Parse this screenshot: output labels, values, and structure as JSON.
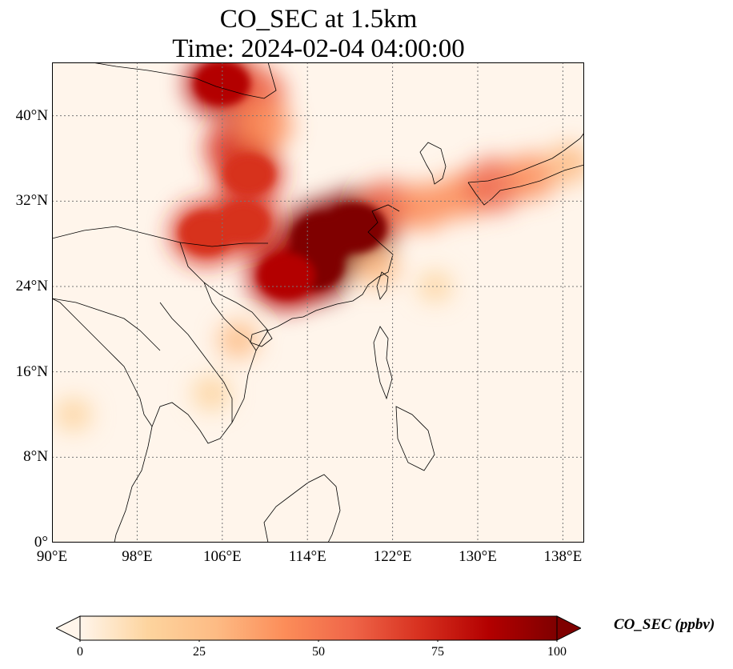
{
  "title": {
    "line1": "CO_SEC at 1.5km",
    "line2": "Time: 2024-02-04 04:00:00"
  },
  "map": {
    "lon_range": [
      90,
      140
    ],
    "lat_range": [
      0,
      45
    ],
    "lat_ticks": [
      {
        "value": 0,
        "label": "0°"
      },
      {
        "value": 8,
        "label": "8°N"
      },
      {
        "value": 16,
        "label": "16°N"
      },
      {
        "value": 24,
        "label": "24°N"
      },
      {
        "value": 32,
        "label": "32°N"
      },
      {
        "value": 40,
        "label": "40°N"
      }
    ],
    "lon_ticks": [
      {
        "value": 90,
        "label": "90°E"
      },
      {
        "value": 98,
        "label": "98°E"
      },
      {
        "value": 106,
        "label": "106°E"
      },
      {
        "value": 114,
        "label": "114°E"
      },
      {
        "value": 122,
        "label": "122°E"
      },
      {
        "value": 130,
        "label": "130°E"
      },
      {
        "value": 138,
        "label": "138°E"
      }
    ],
    "gridlines": true,
    "background_color": "#fff5eb"
  },
  "colorbar": {
    "label": "CO_SEC (ppbv)",
    "min": 0,
    "max": 100,
    "extend": "both",
    "colormap": [
      "#fff5eb",
      "#fdd49e",
      "#fdbb84",
      "#fc8d59",
      "#ef6548",
      "#d7301f",
      "#b30000",
      "#7f0000"
    ],
    "ticks": [
      {
        "value": 0,
        "label": "0"
      },
      {
        "value": 25,
        "label": "25"
      },
      {
        "value": 50,
        "label": "50"
      },
      {
        "value": 75,
        "label": "75"
      },
      {
        "value": 100,
        "label": "100"
      }
    ]
  },
  "plumes": [
    {
      "lon": 115.5,
      "lat": 28.5,
      "value": 100
    },
    {
      "lon": 118.5,
      "lat": 29.5,
      "value": 98
    },
    {
      "lon": 114.5,
      "lat": 26.0,
      "value": 95
    },
    {
      "lon": 112.0,
      "lat": 25.0,
      "value": 85
    },
    {
      "lon": 104.5,
      "lat": 29.0,
      "value": 78
    },
    {
      "lon": 108.0,
      "lat": 30.0,
      "value": 75
    },
    {
      "lon": 108.5,
      "lat": 34.5,
      "value": 72
    },
    {
      "lon": 107.5,
      "lat": 37.0,
      "value": 68
    },
    {
      "lon": 106.0,
      "lat": 43.0,
      "value": 82
    },
    {
      "lon": 109.0,
      "lat": 42.0,
      "value": 60
    },
    {
      "lon": 110.0,
      "lat": 39.0,
      "value": 45
    },
    {
      "lon": 121.5,
      "lat": 31.5,
      "value": 50
    },
    {
      "lon": 125.0,
      "lat": 31.5,
      "value": 42
    },
    {
      "lon": 128.5,
      "lat": 32.5,
      "value": 40
    },
    {
      "lon": 131.5,
      "lat": 33.5,
      "value": 55
    },
    {
      "lon": 135.0,
      "lat": 34.3,
      "value": 40
    },
    {
      "lon": 138.5,
      "lat": 35.5,
      "value": 30
    },
    {
      "lon": 120.5,
      "lat": 25.8,
      "value": 28
    },
    {
      "lon": 107.5,
      "lat": 19.0,
      "value": 22
    },
    {
      "lon": 105.0,
      "lat": 14.0,
      "value": 18
    },
    {
      "lon": 92.0,
      "lat": 12.0,
      "value": 15
    },
    {
      "lon": 126.0,
      "lat": 24.0,
      "value": 10
    }
  ]
}
